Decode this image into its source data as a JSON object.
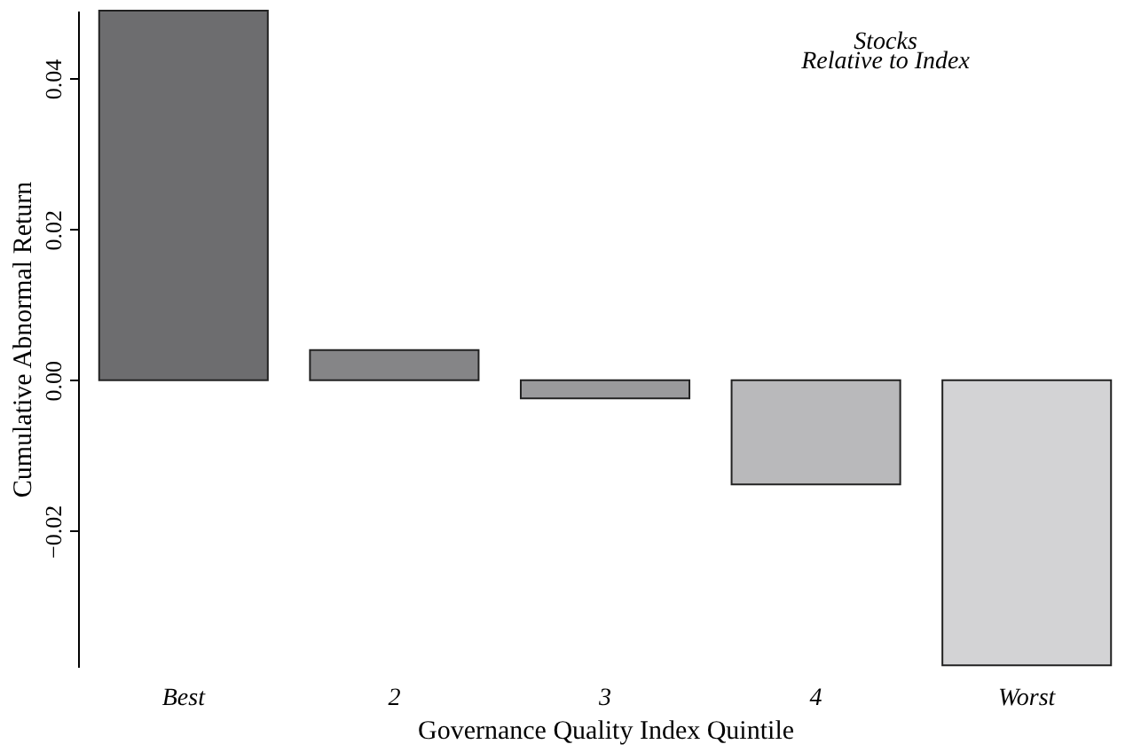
{
  "chart_data": {
    "type": "bar",
    "xlabel": "Governance Quality Index Quintile",
    "ylabel": "Cumulative Abnormal Return",
    "categories": [
      "Best",
      "2",
      "3",
      "4",
      "Worst"
    ],
    "values": [
      0.049,
      0.004,
      -0.0024,
      -0.0138,
      -0.0378
    ],
    "colors": [
      "#6d6d6f",
      "#858587",
      "#9a9a9c",
      "#b9b9bb",
      "#d3d3d5"
    ],
    "ylim": [
      -0.038,
      0.049
    ],
    "yticks": [
      {
        "value": -0.02,
        "label": "−0.02"
      },
      {
        "value": 0,
        "label": "0.00"
      },
      {
        "value": 0.02,
        "label": "0.02"
      },
      {
        "value": 0.04,
        "label": "0.04"
      }
    ],
    "grid": false,
    "annotations": [
      "Stocks",
      "Relative to Index"
    ]
  }
}
